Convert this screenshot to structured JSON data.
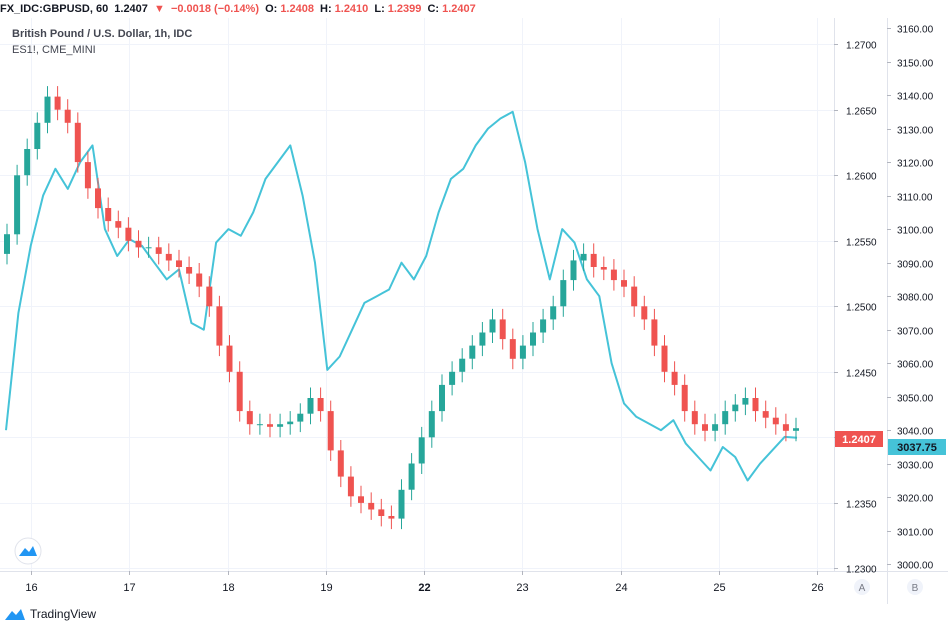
{
  "header": {
    "symbol": "FX_IDC:GBPUSD, 60",
    "last": "1.2407",
    "change": "−0.0018 (−0.14%)",
    "o_label": "O:",
    "o_value": "1.2408",
    "h_label": "H:",
    "h_value": "1.2410",
    "l_label": "L:",
    "l_value": "1.2399",
    "c_label": "C:",
    "c_value": "1.2407"
  },
  "legend": {
    "main": "British Pound / U.S. Dollar, 1h, IDC",
    "compare": "ES1!, CME_MINI"
  },
  "scale_buttons": {
    "a": "A",
    "b": "B"
  },
  "footer": {
    "brand": "TradingView"
  },
  "colors": {
    "up": "#26a69a",
    "down": "#ef5350",
    "compare": "#45c3d8",
    "grid": "#f0f3fa",
    "axis_text": "#131722"
  },
  "chart_data": {
    "type": "candlestick+line",
    "x_ticks": [
      "16",
      "17",
      "18",
      "19",
      "22",
      "23",
      "24",
      "25",
      "26"
    ],
    "left_axis": {
      "name": "GBPUSD",
      "ticks": [
        "1.2300",
        "1.2350",
        "1.2400",
        "1.2450",
        "1.2500",
        "1.2550",
        "1.2600",
        "1.2650",
        "1.2700"
      ],
      "range": [
        1.2298,
        1.272
      ],
      "last_label": "1.2407"
    },
    "right_axis": {
      "name": "ES1!",
      "ticks": [
        "3000.00",
        "3010.00",
        "3020.00",
        "3030.00",
        "3040.00",
        "3050.00",
        "3060.00",
        "3070.00",
        "3080.00",
        "3090.00",
        "3100.00",
        "3110.00",
        "3120.00",
        "3130.00",
        "3140.00",
        "3150.00",
        "3160.00"
      ],
      "range": [
        2998,
        3163
      ],
      "last_label": "3037.75"
    },
    "gbpusd_close": [
      1.2555,
      1.26,
      1.262,
      1.264,
      1.266,
      1.265,
      1.264,
      1.261,
      1.259,
      1.2575,
      1.2565,
      1.256,
      1.255,
      1.2545,
      1.2545,
      1.254,
      1.2535,
      1.253,
      1.2525,
      1.2515,
      1.25,
      1.247,
      1.245,
      1.242,
      1.241,
      1.241,
      1.2408,
      1.241,
      1.2412,
      1.2418,
      1.243,
      1.242,
      1.239,
      1.237,
      1.2355,
      1.235,
      1.2345,
      1.234,
      1.2338,
      1.236,
      1.238,
      1.24,
      1.242,
      1.244,
      1.245,
      1.246,
      1.247,
      1.248,
      1.249,
      1.2475,
      1.246,
      1.247,
      1.248,
      1.249,
      1.25,
      1.252,
      1.2535,
      1.254,
      1.253,
      1.2528,
      1.252,
      1.2515,
      1.25,
      1.249,
      1.247,
      1.245,
      1.244,
      1.242,
      1.241,
      1.2405,
      1.241,
      1.242,
      1.2425,
      1.243,
      1.242,
      1.2415,
      1.241,
      1.2405,
      1.2407
    ],
    "es1_close": [
      3040,
      3075,
      3095,
      3110,
      3118,
      3112,
      3120,
      3125,
      3100,
      3092,
      3097,
      3095,
      3090,
      3085,
      3088,
      3072,
      3070,
      3096,
      3100,
      3098,
      3105,
      3115,
      3120,
      3125,
      3110,
      3090,
      3058,
      3062,
      3070,
      3078,
      3080,
      3082,
      3090,
      3085,
      3092,
      3105,
      3115,
      3118,
      3125,
      3130,
      3133,
      3135,
      3120,
      3100,
      3085,
      3100,
      3096,
      3085,
      3080,
      3060,
      3048,
      3044,
      3042,
      3040,
      3043,
      3036,
      3032,
      3028,
      3035,
      3032,
      3025,
      3030,
      3034,
      3038,
      3037.75
    ]
  }
}
